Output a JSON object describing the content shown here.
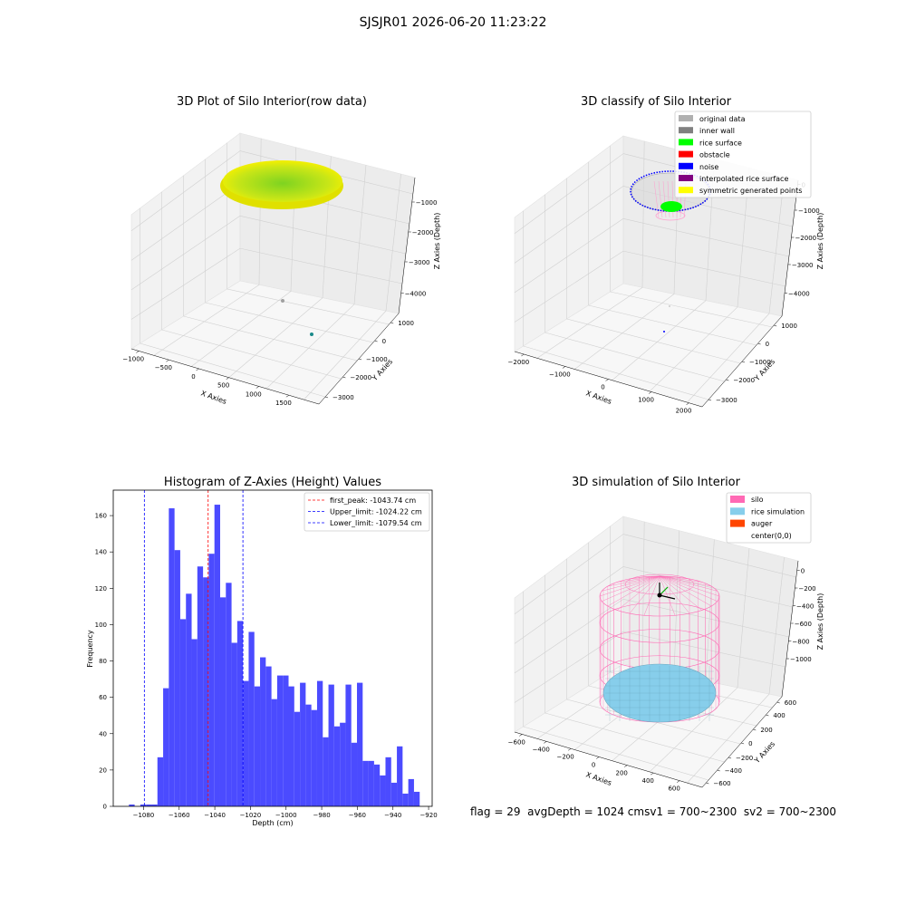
{
  "figure": {
    "suptitle": "SJSJR01 2026-06-20 11:23:22",
    "footer": {
      "flag": "flag = 29",
      "avg_depth": "avgDepth = 1024 cm",
      "sv1": "sv1 = 700~2300",
      "sv2": "sv2 = 700~2300"
    }
  },
  "chart_data": [
    {
      "type": "scatter3d",
      "title": "3D Plot of Silo Interior(row data)",
      "xlabel": "X Axies",
      "ylabel": "Y Axies",
      "zlabel": "Z Axies (Depth)",
      "x_ticks": [
        "−1000",
        "−500",
        "0",
        "500",
        "1000",
        "1500"
      ],
      "y_ticks": [
        "1000",
        "0",
        "−1000",
        "−2000",
        "−3000"
      ],
      "z_ticks": [
        "−1000",
        "−2000",
        "−3000",
        "−4000"
      ],
      "grid": true,
      "colors": {
        "surface_center": "#7ed321",
        "surface_edge": "#f5f000",
        "outlier": "#1a8a8a"
      }
    },
    {
      "type": "scatter3d",
      "title": "3D classify of Silo Interior",
      "xlabel": "X Axies",
      "ylabel": "Y Axies",
      "zlabel": "Z Axies (Depth)",
      "x_ticks": [
        "−2000",
        "−1000",
        "0",
        "1000",
        "2000"
      ],
      "y_ticks": [
        "1000",
        "0",
        "−1000",
        "−2000",
        "−3000"
      ],
      "z_ticks": [
        "0",
        "−1000",
        "−2000",
        "−3000",
        "−4000"
      ],
      "grid": true,
      "legend_position": "top-right",
      "legend": [
        {
          "label": "original data",
          "color": "#b0b0b0"
        },
        {
          "label": "inner wall",
          "color": "#808080"
        },
        {
          "label": "rice surface",
          "color": "#00ff00"
        },
        {
          "label": "obstacle",
          "color": "#ff0000"
        },
        {
          "label": "noise",
          "color": "#0000ff"
        },
        {
          "label": "interpolated rice surface",
          "color": "#800080"
        },
        {
          "label": "symmetric generated points",
          "color": "#ffff00"
        }
      ]
    },
    {
      "type": "bar",
      "title": "Histogram of Z-Axies (Height) Values",
      "xlabel": "Depth (cm)",
      "ylabel": "Frequency",
      "xlim": [
        -1097,
        -918
      ],
      "ylim": [
        0,
        174
      ],
      "x_ticks": [
        -1080,
        -1060,
        -1040,
        -1020,
        -1000,
        -980,
        -960,
        -940,
        -920
      ],
      "y_ticks": [
        0,
        20,
        40,
        60,
        80,
        100,
        120,
        140,
        160
      ],
      "bar_color": "#4b4bff",
      "bin_start": -1088.2,
      "bin_width": 3.2,
      "values": [
        1,
        0,
        1,
        1,
        1,
        27,
        65,
        164,
        141,
        103,
        117,
        92,
        132,
        126,
        139,
        166,
        115,
        123,
        90,
        102,
        69,
        96,
        66,
        82,
        77,
        59,
        72,
        72,
        66,
        52,
        68,
        56,
        53,
        69,
        38,
        67,
        44,
        46,
        67,
        35,
        68,
        25,
        25,
        23,
        17,
        27,
        13,
        33,
        7,
        15,
        8
      ],
      "lines": [
        {
          "label": "first_peak: -1043.74 cm",
          "value": -1043.74,
          "color": "#ff0000"
        },
        {
          "label": "Upper_limit: -1024.22 cm",
          "value": -1024.22,
          "color": "#0000ff"
        },
        {
          "label": "Lower_limit: -1079.54 cm",
          "value": -1079.54,
          "color": "#0000ff"
        }
      ],
      "legend_position": "top-right"
    },
    {
      "type": "surface3d",
      "title": "3D simulation of Silo Interior",
      "xlabel": "X Axies",
      "ylabel": "Y Axies",
      "zlabel": "Z Axies (Depth)",
      "x_ticks": [
        "−600",
        "−400",
        "−200",
        "0",
        "200",
        "400",
        "600"
      ],
      "y_ticks": [
        "600",
        "400",
        "200",
        "0",
        "−200",
        "−400",
        "−600"
      ],
      "z_ticks": [
        "0",
        "−200",
        "−400",
        "−600",
        "−800",
        "−1000"
      ],
      "grid": true,
      "legend_position": "top-right",
      "legend": [
        {
          "label": "silo",
          "color": "#ff69b4"
        },
        {
          "label": "rice simulation",
          "color": "#87ceeb"
        },
        {
          "label": "auger",
          "color": "#ff4500"
        },
        {
          "label": "center(0,0)",
          "color": ""
        }
      ]
    }
  ]
}
